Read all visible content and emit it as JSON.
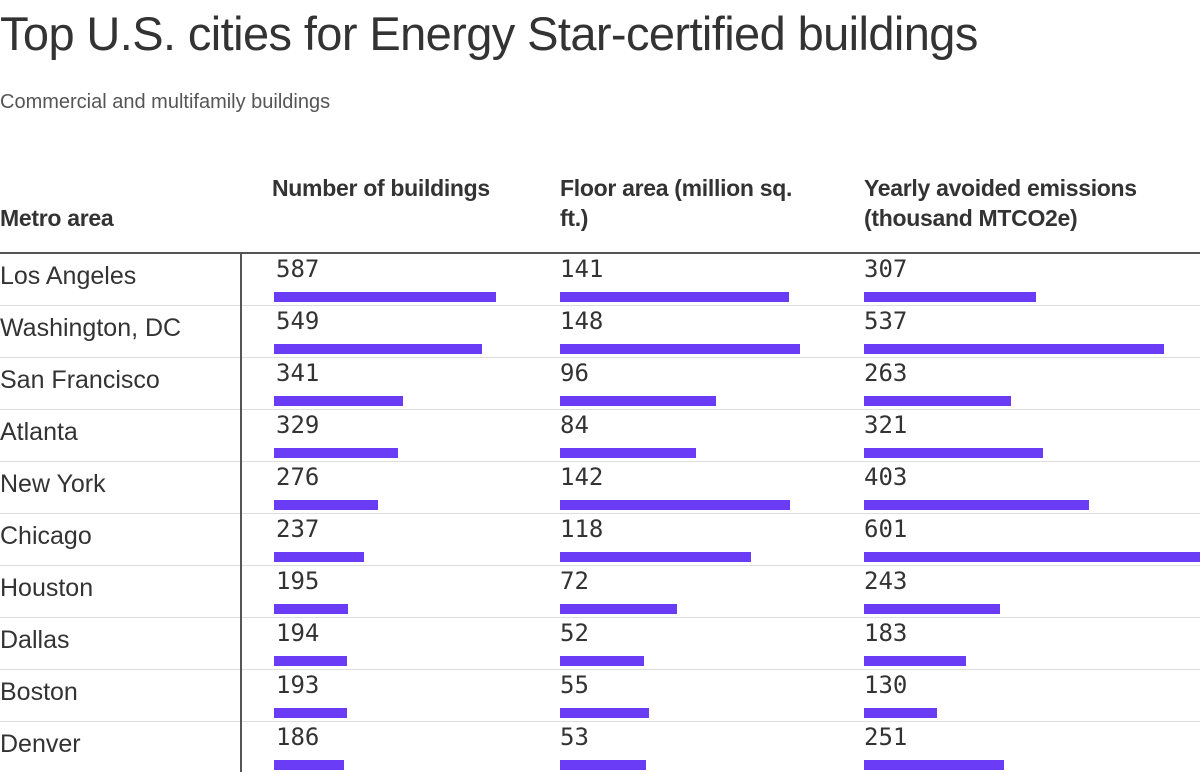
{
  "title": "Top U.S. cities for Energy Star‑certified buildings",
  "subtitle": "Commercial and multifamily buildings",
  "colors": {
    "bar": "#6b3cf5",
    "text": "#333333",
    "rule": "#555555"
  },
  "chart_data": {
    "type": "table",
    "columns": [
      {
        "key": "metro",
        "label": "Metro area"
      },
      {
        "key": "buildings",
        "label": "Number of buildings",
        "max": 587
      },
      {
        "key": "floor_area",
        "label": "Floor area (million sq. ft.)",
        "max": 148
      },
      {
        "key": "emissions",
        "label": "Yearly avoided emissions (thousand MTCO2e)",
        "max": 601
      }
    ],
    "rows": [
      {
        "metro": "Los Angeles",
        "buildings": 587,
        "floor_area": 141,
        "emissions": 307
      },
      {
        "metro": "Washington, DC",
        "buildings": 549,
        "floor_area": 148,
        "emissions": 537
      },
      {
        "metro": "San Francisco",
        "buildings": 341,
        "floor_area": 96,
        "emissions": 263
      },
      {
        "metro": "Atlanta",
        "buildings": 329,
        "floor_area": 84,
        "emissions": 321
      },
      {
        "metro": "New York",
        "buildings": 276,
        "floor_area": 142,
        "emissions": 403
      },
      {
        "metro": "Chicago",
        "buildings": 237,
        "floor_area": 118,
        "emissions": 601
      },
      {
        "metro": "Houston",
        "buildings": 195,
        "floor_area": 72,
        "emissions": 243
      },
      {
        "metro": "Dallas",
        "buildings": 194,
        "floor_area": 52,
        "emissions": 183
      },
      {
        "metro": "Boston",
        "buildings": 193,
        "floor_area": 55,
        "emissions": 130
      },
      {
        "metro": "Denver",
        "buildings": 186,
        "floor_area": 53,
        "emissions": 251
      }
    ]
  }
}
